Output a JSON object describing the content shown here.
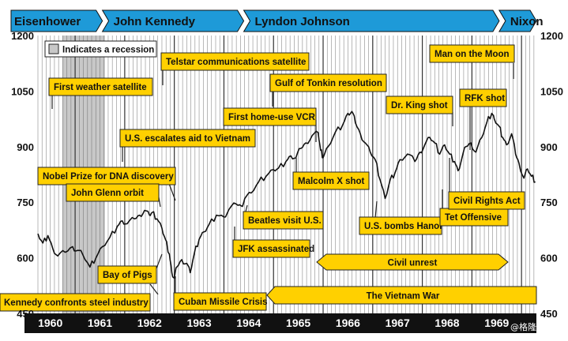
{
  "chart_data": {
    "type": "line",
    "title": "",
    "xlabel": "",
    "ylabel": "",
    "ylim": [
      450,
      1200
    ],
    "yticks": [
      "1200",
      "1050",
      "900",
      "750",
      "600",
      "450"
    ],
    "x_range": [
      1959.75,
      1969.8
    ],
    "x_tick_labels": [
      "1960",
      "1961",
      "1962",
      "1963",
      "1964",
      "1965",
      "1966",
      "1967",
      "1968",
      "1969"
    ],
    "grid": "vertical-monthly",
    "legend": {
      "position": "top-left",
      "label": "Indicates a recession"
    },
    "recession": [
      1960.25,
      1961.1
    ],
    "presidents": [
      {
        "name": "Eisenhower",
        "from": 1959.75,
        "to": 1961.05
      },
      {
        "name": "John Kennedy",
        "from": 1961.05,
        "to": 1963.9
      },
      {
        "name": "Lyndon Johnson",
        "from": 1963.9,
        "to": 1969.05
      },
      {
        "name": "Nixon",
        "from": 1969.05,
        "to": 1969.8
      }
    ],
    "series": [
      {
        "points": [
          [
            1959.75,
            665
          ],
          [
            1959.85,
            640
          ],
          [
            1959.95,
            660
          ],
          [
            1960.05,
            625
          ],
          [
            1960.15,
            605
          ],
          [
            1960.3,
            615
          ],
          [
            1960.45,
            630
          ],
          [
            1960.55,
            620
          ],
          [
            1960.65,
            610
          ],
          [
            1960.8,
            575
          ],
          [
            1960.92,
            600
          ],
          [
            1961.05,
            630
          ],
          [
            1961.2,
            655
          ],
          [
            1961.35,
            685
          ],
          [
            1961.45,
            700
          ],
          [
            1961.55,
            692
          ],
          [
            1961.7,
            705
          ],
          [
            1961.8,
            715
          ],
          [
            1961.9,
            728
          ],
          [
            1962.0,
            715
          ],
          [
            1962.05,
            722
          ],
          [
            1962.15,
            705
          ],
          [
            1962.25,
            680
          ],
          [
            1962.32,
            650
          ],
          [
            1962.4,
            610
          ],
          [
            1962.45,
            560
          ],
          [
            1962.5,
            545
          ],
          [
            1962.55,
            575
          ],
          [
            1962.65,
            595
          ],
          [
            1962.75,
            585
          ],
          [
            1962.82,
            560
          ],
          [
            1962.9,
            610
          ],
          [
            1963.0,
            650
          ],
          [
            1963.1,
            670
          ],
          [
            1963.2,
            690
          ],
          [
            1963.35,
            715
          ],
          [
            1963.5,
            710
          ],
          [
            1963.6,
            730
          ],
          [
            1963.75,
            745
          ],
          [
            1963.85,
            740
          ],
          [
            1963.92,
            760
          ],
          [
            1964.05,
            775
          ],
          [
            1964.2,
            805
          ],
          [
            1964.35,
            820
          ],
          [
            1964.5,
            838
          ],
          [
            1964.6,
            842
          ],
          [
            1964.75,
            860
          ],
          [
            1964.85,
            875
          ],
          [
            1964.95,
            870
          ],
          [
            1965.05,
            895
          ],
          [
            1965.15,
            910
          ],
          [
            1965.28,
            930
          ],
          [
            1965.4,
            938
          ],
          [
            1965.45,
            890
          ],
          [
            1965.5,
            870
          ],
          [
            1965.6,
            900
          ],
          [
            1965.75,
            940
          ],
          [
            1965.9,
            960
          ],
          [
            1966.0,
            990
          ],
          [
            1966.08,
            995
          ],
          [
            1966.15,
            965
          ],
          [
            1966.25,
            935
          ],
          [
            1966.35,
            910
          ],
          [
            1966.45,
            885
          ],
          [
            1966.55,
            865
          ],
          [
            1966.65,
            810
          ],
          [
            1966.75,
            760
          ],
          [
            1966.85,
            810
          ],
          [
            1966.95,
            830
          ],
          [
            1967.05,
            865
          ],
          [
            1967.2,
            880
          ],
          [
            1967.35,
            860
          ],
          [
            1967.45,
            885
          ],
          [
            1967.55,
            905
          ],
          [
            1967.65,
            925
          ],
          [
            1967.75,
            910
          ],
          [
            1967.85,
            880
          ],
          [
            1967.95,
            905
          ],
          [
            1968.05,
            880
          ],
          [
            1968.15,
            860
          ],
          [
            1968.22,
            835
          ],
          [
            1968.3,
            870
          ],
          [
            1968.38,
            900
          ],
          [
            1968.48,
            910
          ],
          [
            1968.58,
            885
          ],
          [
            1968.7,
            925
          ],
          [
            1968.8,
            965
          ],
          [
            1968.9,
            990
          ],
          [
            1968.95,
            975
          ],
          [
            1969.05,
            955
          ],
          [
            1969.12,
            925
          ],
          [
            1969.2,
            905
          ],
          [
            1969.3,
            935
          ],
          [
            1969.38,
            880
          ],
          [
            1969.45,
            855
          ],
          [
            1969.55,
            815
          ],
          [
            1969.62,
            840
          ],
          [
            1969.7,
            820
          ],
          [
            1969.78,
            805
          ]
        ]
      }
    ],
    "annotations": [
      {
        "text": "First weather satellite",
        "x": 1960.28
      },
      {
        "text": "Telstar communications satellite",
        "x": 1962.52
      },
      {
        "text": "Gulf of Tonkin resolution",
        "x": 1964.58
      },
      {
        "text": "First home-use VCR",
        "x": 1965.1
      },
      {
        "text": "U.S. escalates aid to Vietnam",
        "x": 1961.83
      },
      {
        "text": "Nobel Prize for DNA discovery",
        "x": 1962.28
      },
      {
        "text": "John Glenn orbit",
        "x": 1962.15
      },
      {
        "text": "Beatles visit U.S.",
        "x": 1964.1
      },
      {
        "text": "JFK assassinated",
        "x": 1963.87
      },
      {
        "text": "Malcolm X shot",
        "x": 1965.12
      },
      {
        "text": "Dr. King shot",
        "x": 1968.26
      },
      {
        "text": "RFK shot",
        "x": 1968.42
      },
      {
        "text": "Man on the Moon",
        "x": 1969.55
      },
      {
        "text": "U.S. bombs Hanoi",
        "x": 1966.3
      },
      {
        "text": "Tet Offensive",
        "x": 1968.08
      },
      {
        "text": "Civil Rights Act",
        "x": 1964.5
      },
      {
        "text": "Bay of Pigs",
        "x": 1961.3
      },
      {
        "text": "Kennedy confronts steel industry",
        "x": 1962.33
      },
      {
        "text": "Cuban Missile Crisis",
        "x": 1962.82
      },
      {
        "text": "Civil unrest",
        "from": 1965.05,
        "to": 1968.85
      },
      {
        "text": "The Vietnam War",
        "from": 1964.4,
        "to": 1969.8
      }
    ]
  },
  "watermark": "@格隆汇"
}
